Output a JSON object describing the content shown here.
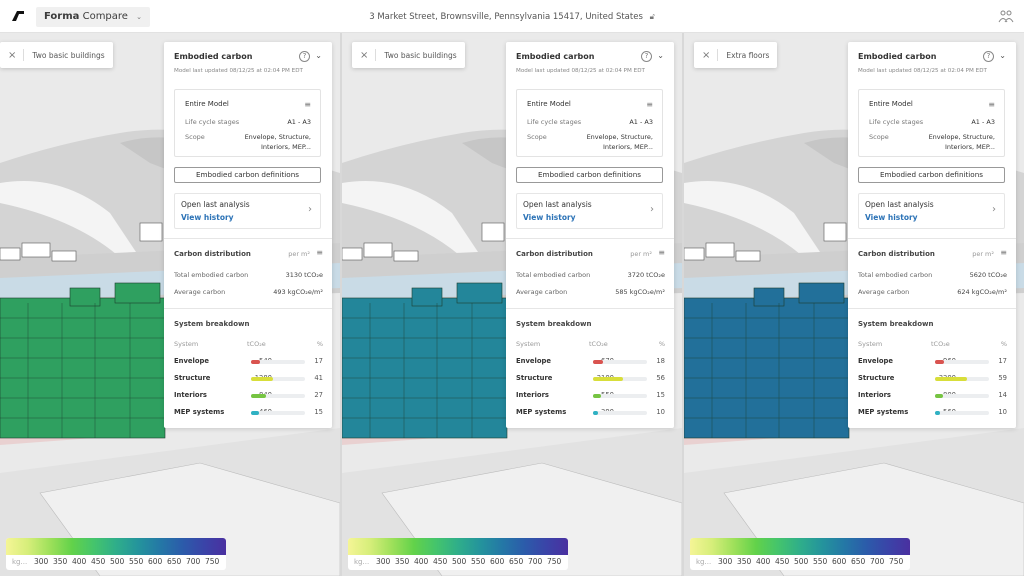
{
  "topbar": {
    "app_brand": "Forma",
    "app_name": "Compare",
    "address": "3 Market Street, Brownsville, Pennsylvania 15417, United States"
  },
  "colors": {
    "accent": "#2b72b6",
    "envelope": "#d9534f",
    "structure": "#d8de3a",
    "interiors": "#76c442",
    "mep": "#2fb1c3"
  },
  "legend": {
    "unit": "kg...",
    "ticks": [
      "300",
      "350",
      "400",
      "450",
      "500",
      "550",
      "600",
      "650",
      "700",
      "750"
    ]
  },
  "panes": [
    {
      "scenario": "Two basic buildings",
      "building_color": "#2fa060",
      "panel": {
        "title": "Embodied carbon",
        "updated": "Model last updated 08/12/25 at 02:04 PM EDT",
        "scope_title": "Entire Model",
        "lcs_label": "Life cycle stages",
        "lcs_value": "A1 - A3",
        "scope_label": "Scope",
        "scope_value": "Envelope, Structure, Interiors, MEP...",
        "definitions_button": "Embodied carbon definitions",
        "open_last": "Open last analysis",
        "view_history": "View history",
        "distribution_title": "Carbon distribution",
        "per": "per m²",
        "total_label": "Total embodied carbon",
        "total_value": "3130 tCO₂e",
        "avg_label": "Average carbon",
        "avg_value": "493 kgCO₂e/m²",
        "breakdown_title": "System breakdown",
        "col_system": "System",
        "col_unit": "tCO₂e",
        "col_pct": "%",
        "rows": [
          {
            "name": "Envelope",
            "value": "540",
            "pct": "17"
          },
          {
            "name": "Structure",
            "value": "1280",
            "pct": "41"
          },
          {
            "name": "Interiors",
            "value": "840",
            "pct": "27"
          },
          {
            "name": "MEP systems",
            "value": "460",
            "pct": "15"
          }
        ]
      }
    },
    {
      "scenario": "Two basic buildings",
      "building_color": "#23869a",
      "panel": {
        "title": "Embodied carbon",
        "updated": "Model last updated 08/12/25 at 02:04 PM EDT",
        "scope_title": "Entire Model",
        "lcs_label": "Life cycle stages",
        "lcs_value": "A1 - A3",
        "scope_label": "Scope",
        "scope_value": "Envelope, Structure, Interiors, MEP...",
        "definitions_button": "Embodied carbon definitions",
        "open_last": "Open last analysis",
        "view_history": "View history",
        "distribution_title": "Carbon distribution",
        "per": "per m²",
        "total_label": "Total embodied carbon",
        "total_value": "3720 tCO₂e",
        "avg_label": "Average carbon",
        "avg_value": "585 kgCO₂e/m²",
        "breakdown_title": "System breakdown",
        "col_system": "System",
        "col_unit": "tCO₂e",
        "col_pct": "%",
        "rows": [
          {
            "name": "Envelope",
            "value": "670",
            "pct": "18"
          },
          {
            "name": "Structure",
            "value": "2100",
            "pct": "56"
          },
          {
            "name": "Interiors",
            "value": "550",
            "pct": "15"
          },
          {
            "name": "MEP systems",
            "value": "390",
            "pct": "10"
          }
        ]
      }
    },
    {
      "scenario": "Extra floors",
      "building_color": "#22709a",
      "panel": {
        "title": "Embodied carbon",
        "updated": "Model last updated 08/12/25 at 02:04 PM EDT",
        "scope_title": "Entire Model",
        "lcs_label": "Life cycle stages",
        "lcs_value": "A1 - A3",
        "scope_label": "Scope",
        "scope_value": "Envelope, Structure, Interiors, MEP...",
        "definitions_button": "Embodied carbon definitions",
        "open_last": "Open last analysis",
        "view_history": "View history",
        "distribution_title": "Carbon distribution",
        "per": "per m²",
        "total_label": "Total embodied carbon",
        "total_value": "5620 tCO₂e",
        "avg_label": "Average carbon",
        "avg_value": "624 kgCO₂e/m²",
        "breakdown_title": "System breakdown",
        "col_system": "System",
        "col_unit": "tCO₂e",
        "col_pct": "%",
        "rows": [
          {
            "name": "Envelope",
            "value": "960",
            "pct": "17"
          },
          {
            "name": "Structure",
            "value": "3300",
            "pct": "59"
          },
          {
            "name": "Interiors",
            "value": "800",
            "pct": "14"
          },
          {
            "name": "MEP systems",
            "value": "560",
            "pct": "10"
          }
        ]
      }
    }
  ]
}
